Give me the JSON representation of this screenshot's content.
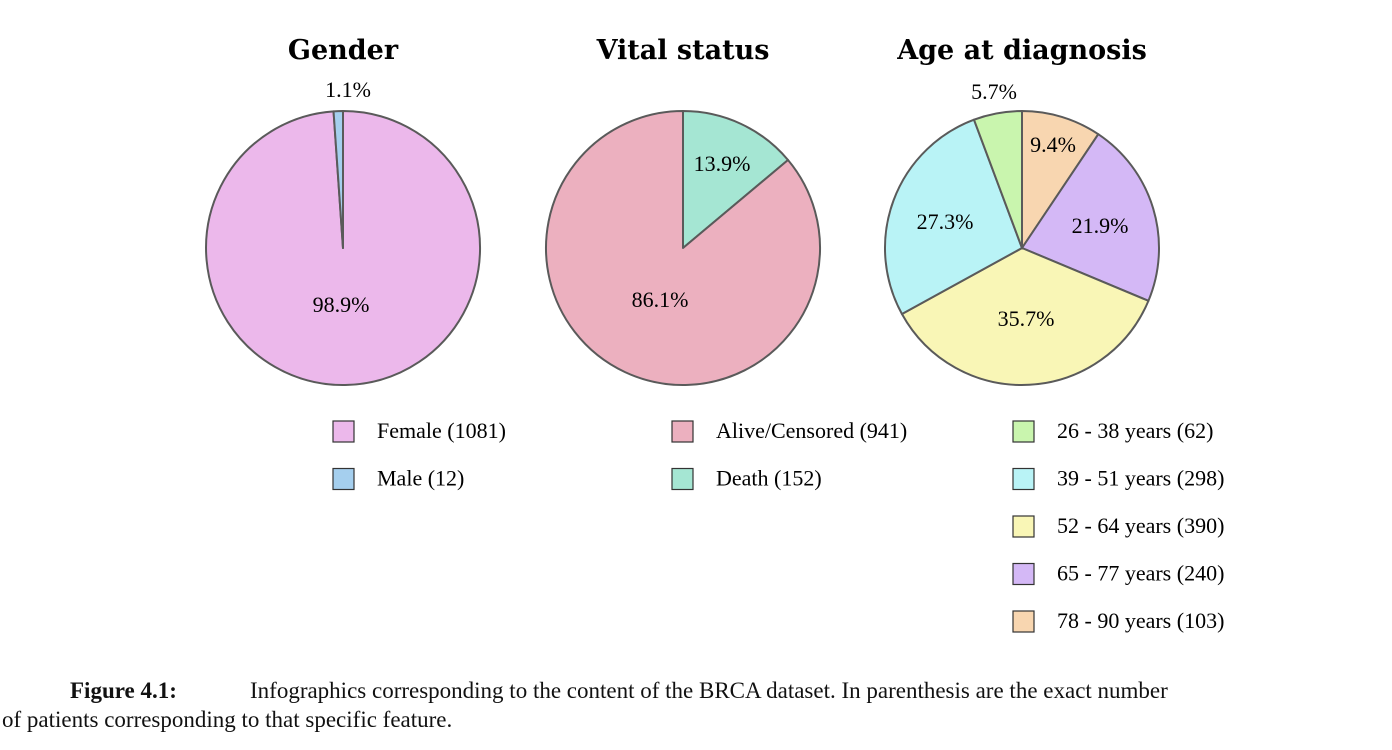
{
  "chart_data": [
    {
      "type": "pie",
      "title": "Gender",
      "slices": [
        {
          "label": "Female (1081)",
          "value": 98.9,
          "pct_label": "98.9%",
          "color": "#ecb8eb"
        },
        {
          "label": "Male (12)",
          "value": 1.1,
          "pct_label": "1.1%",
          "color": "#a5cfee"
        }
      ]
    },
    {
      "type": "pie",
      "title": "Vital status",
      "slices": [
        {
          "label": "Death (152)",
          "value": 13.9,
          "pct_label": "13.9%",
          "color": "#a5e6d3"
        },
        {
          "label": "Alive/Censored (941)",
          "value": 86.1,
          "pct_label": "86.1%",
          "color": "#ecb0bf"
        }
      ]
    },
    {
      "type": "pie",
      "title": "Age at diagnosis",
      "slices": [
        {
          "label": "78 - 90 years (103)",
          "value": 9.4,
          "pct_label": "9.4%",
          "color": "#f8d6b0"
        },
        {
          "label": "65 - 77 years (240)",
          "value": 21.9,
          "pct_label": "21.9%",
          "color": "#d4b8f6"
        },
        {
          "label": "52 - 64 years (390)",
          "value": 35.7,
          "pct_label": "35.7%",
          "color": "#f9f6b6"
        },
        {
          "label": "39 - 51 years (298)",
          "value": 27.3,
          "pct_label": "27.3%",
          "color": "#b9f3f6"
        },
        {
          "label": "26 - 38 years (62)",
          "value": 5.7,
          "pct_label": "5.7%",
          "color": "#c9f5ae"
        }
      ]
    }
  ],
  "legends": [
    [
      "Female (1081)",
      "Male (12)"
    ],
    [
      "Alive/Censored (941)",
      "Death (152)"
    ],
    [
      "26 - 38 years (62)",
      "39 - 51 years (298)",
      "52 - 64 years (390)",
      "65 - 77 years (240)",
      "78 - 90 years (103)"
    ]
  ],
  "caption": {
    "label": "Figure 4.1:",
    "line1": "Infographics corresponding to the content of the BRCA dataset. In parenthesis are the exact number",
    "line2": "of patients corresponding to that specific feature."
  }
}
